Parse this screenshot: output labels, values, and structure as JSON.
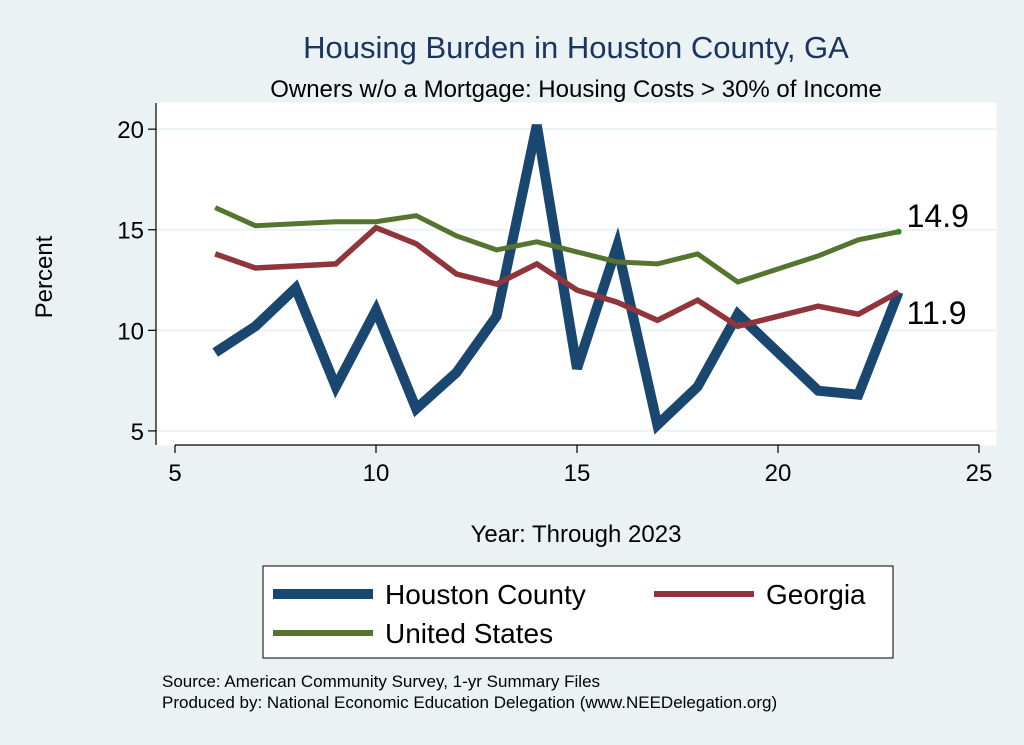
{
  "chart_data": {
    "type": "line",
    "title": "Housing Burden in Houston County, GA",
    "subtitle": "Owners w/o a Mortgage: Housing Costs > 30% of Income",
    "xlabel": "Year: Through 2023",
    "ylabel": "Percent",
    "xlim": [
      5,
      25
    ],
    "ylim": [
      4.3,
      21.3
    ],
    "x_ticks": [
      5,
      10,
      15,
      20,
      25
    ],
    "y_ticks": [
      5,
      10,
      15,
      20
    ],
    "grid": true,
    "series": [
      {
        "name": "Houston County",
        "color": "#1a476f",
        "x": [
          6,
          7,
          8,
          9,
          10,
          11,
          12,
          13,
          14,
          15,
          16,
          17,
          18,
          19,
          21,
          22,
          23
        ],
        "values": [
          8.9,
          10.2,
          12.1,
          7.2,
          11.0,
          6.1,
          7.9,
          10.7,
          20.2,
          8.1,
          14.2,
          5.3,
          7.2,
          10.8,
          7.0,
          6.8,
          11.9
        ]
      },
      {
        "name": "Georgia",
        "color": "#90353b",
        "x": [
          6,
          7,
          8,
          9,
          10,
          11,
          12,
          13,
          14,
          15,
          16,
          17,
          18,
          19,
          21,
          22,
          23
        ],
        "values": [
          13.8,
          13.1,
          13.2,
          13.3,
          15.1,
          14.3,
          12.8,
          12.3,
          13.3,
          12.0,
          11.4,
          10.5,
          11.5,
          10.2,
          11.2,
          10.8,
          11.9
        ]
      },
      {
        "name": "United States",
        "color": "#55752f",
        "x": [
          6,
          7,
          8,
          9,
          10,
          11,
          12,
          13,
          14,
          15,
          16,
          17,
          18,
          19,
          21,
          22,
          23
        ],
        "values": [
          16.1,
          15.2,
          15.3,
          15.4,
          15.4,
          15.7,
          14.7,
          14.0,
          14.4,
          13.9,
          13.4,
          13.3,
          13.8,
          12.4,
          13.7,
          14.5,
          14.9
        ]
      }
    ],
    "annotations": [
      {
        "text": "14.9",
        "x": 23,
        "y": 14.9
      },
      {
        "text": "11.9",
        "x": 23,
        "y": 11.9
      }
    ],
    "legend": {
      "placement": "bottom",
      "entries": [
        "Houston County",
        "Georgia",
        "United States"
      ]
    },
    "footnotes": [
      "Source: American Community Survey, 1-yr Summary Files",
      "Produced by: National Economic Education Delegation (www.NEEDelegation.org)"
    ]
  }
}
